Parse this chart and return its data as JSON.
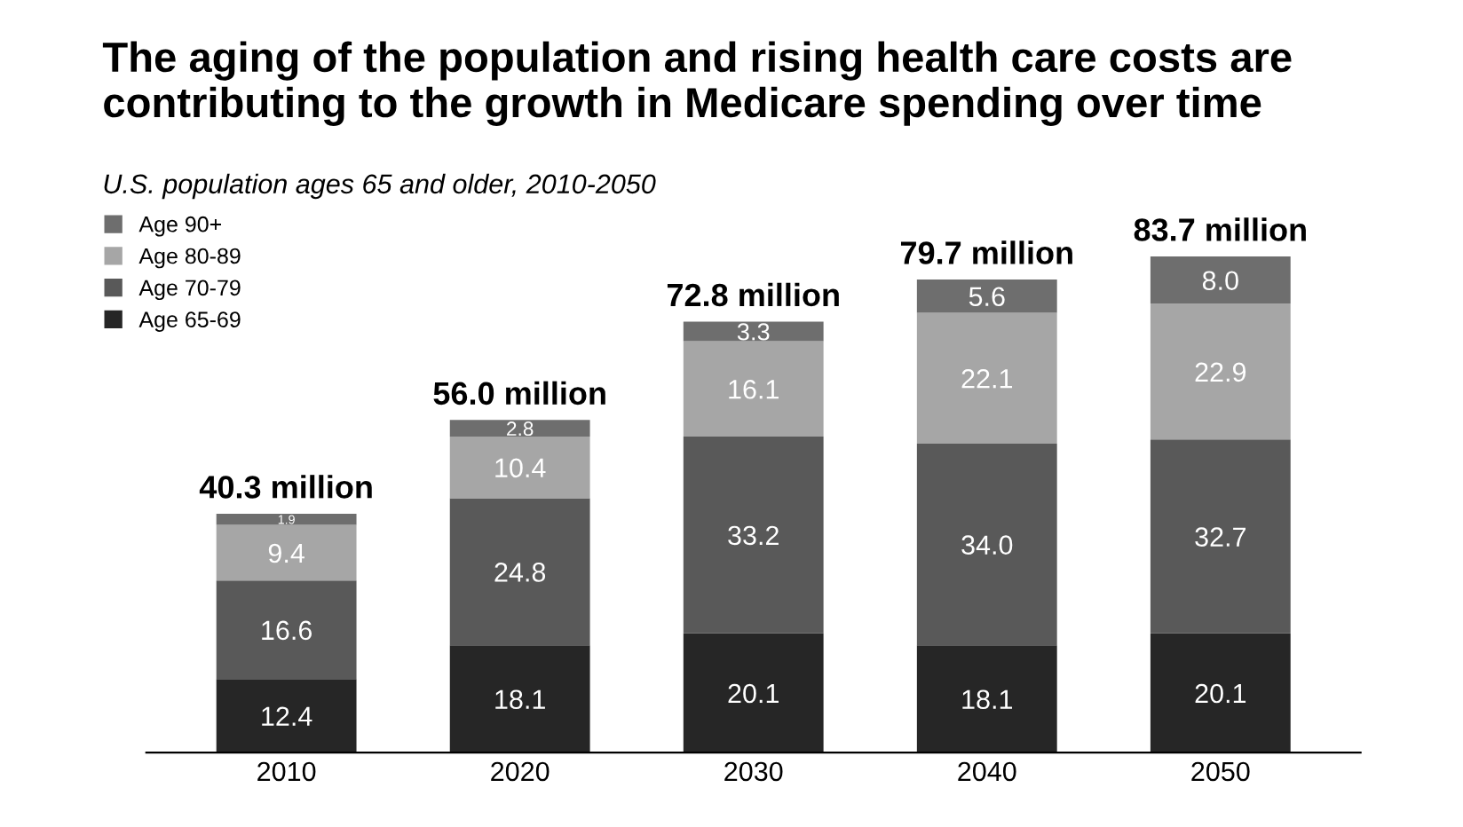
{
  "chart_data": {
    "type": "bar",
    "title": "The aging of the population and rising health care costs are\ncontributing to the growth in Medicare spending over time",
    "subtitle": "U.S. population ages 65 and older, 2010-2050",
    "categories": [
      "2010",
      "2020",
      "2030",
      "2040",
      "2050"
    ],
    "stacked": true,
    "legend": "top left",
    "grid": false,
    "tick_labels": "x",
    "series": [
      {
        "name": "Age 65-69",
        "color": "#262626",
        "values": [
          12.4,
          18.1,
          20.1,
          18.1,
          20.1
        ],
        "value_labels": [
          "12.4",
          "18.1",
          "20.1",
          "18.1",
          "20.1"
        ]
      },
      {
        "name": "Age 70-79",
        "color": "#595959",
        "values": [
          16.6,
          24.8,
          33.2,
          34.0,
          32.7
        ],
        "value_labels": [
          "16.6",
          "24.8",
          "33.2",
          "34.0",
          "32.7"
        ]
      },
      {
        "name": "Age 80-89",
        "color": "#a6a6a6",
        "values": [
          9.4,
          10.4,
          16.1,
          22.1,
          22.9
        ],
        "value_labels": [
          "9.4",
          "10.4",
          "16.1",
          "22.1",
          "22.9"
        ]
      },
      {
        "name": "Age 90+",
        "color": "#6e6e6e",
        "values": [
          1.9,
          2.8,
          3.3,
          5.6,
          8.0
        ],
        "value_labels": [
          "1.9",
          "2.8",
          "3.3",
          "5.6",
          "8.0"
        ]
      }
    ],
    "totals": [
      "40.3 million",
      "56.0 million",
      "72.8 million",
      "79.7 million",
      "83.7 million"
    ]
  }
}
